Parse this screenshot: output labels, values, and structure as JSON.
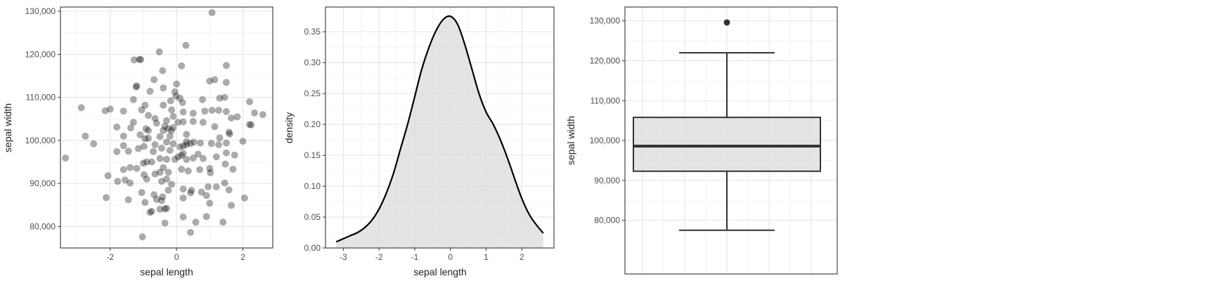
{
  "chart_data": [
    {
      "type": "scatter",
      "xlabel": "sepal length",
      "ylabel": "sepal width",
      "xlim": [
        -3.5,
        2.9
      ],
      "ylim": [
        75000,
        131000
      ],
      "xticks": [
        -2,
        0,
        2
      ],
      "xtick_labels": [
        "-2",
        "0",
        "2"
      ],
      "yticks": [
        80000,
        90000,
        100000,
        110000,
        120000,
        130000
      ],
      "ytick_labels": [
        "80,000",
        "90,000",
        "100,000",
        "110,000",
        "120,000",
        "130,000"
      ],
      "grid": true,
      "points": [
        [
          1.07,
          129700
        ],
        [
          0.28,
          122100
        ],
        [
          -0.52,
          120600
        ],
        [
          -1.28,
          118700
        ],
        [
          -1.12,
          118800
        ],
        [
          -1.08,
          118800
        ],
        [
          0.15,
          117300
        ],
        [
          1.5,
          117400
        ],
        [
          -0.42,
          116200
        ],
        [
          -0.68,
          114100
        ],
        [
          1.0,
          113800
        ],
        [
          1.15,
          114100
        ],
        [
          -1.2,
          112700
        ],
        [
          -1.22,
          112400
        ],
        [
          -0.4,
          112200
        ],
        [
          0.0,
          113100
        ],
        [
          1.5,
          113500
        ],
        [
          -0.8,
          111400
        ],
        [
          -0.05,
          111300
        ],
        [
          -0.02,
          110300
        ],
        [
          0.1,
          109800
        ],
        [
          0.18,
          108800
        ],
        [
          -0.4,
          108200
        ],
        [
          1.3,
          109800
        ],
        [
          1.45,
          110000
        ],
        [
          0.78,
          109500
        ],
        [
          -0.18,
          109200
        ],
        [
          -1.3,
          109500
        ],
        [
          2.2,
          109000
        ],
        [
          -0.95,
          108200
        ],
        [
          -1.6,
          106800
        ],
        [
          -1.05,
          107100
        ],
        [
          -2.0,
          107300
        ],
        [
          -2.87,
          107600
        ],
        [
          -2.15,
          106900
        ],
        [
          0.2,
          106600
        ],
        [
          0.5,
          106300
        ],
        [
          -0.15,
          107100
        ],
        [
          0.85,
          106800
        ],
        [
          1.07,
          107000
        ],
        [
          1.27,
          107000
        ],
        [
          1.5,
          106700
        ],
        [
          1.83,
          105500
        ],
        [
          1.65,
          105200
        ],
        [
          -0.1,
          105600
        ],
        [
          2.35,
          106400
        ],
        [
          2.6,
          106000
        ],
        [
          -0.85,
          105800
        ],
        [
          -0.65,
          105100
        ],
        [
          -0.3,
          104600
        ],
        [
          0.04,
          104200
        ],
        [
          0.2,
          104300
        ],
        [
          0.5,
          104400
        ],
        [
          2.2,
          103700
        ],
        [
          2.25,
          103600
        ],
        [
          0.8,
          104200
        ],
        [
          -0.6,
          104000
        ],
        [
          -1.3,
          104200
        ],
        [
          -1.8,
          103100
        ],
        [
          -1.38,
          102900
        ],
        [
          -0.92,
          102700
        ],
        [
          -0.85,
          102300
        ],
        [
          -0.4,
          102300
        ],
        [
          -0.35,
          103300
        ],
        [
          -0.25,
          102700
        ],
        [
          -0.15,
          102300
        ],
        [
          -0.1,
          103000
        ],
        [
          1.15,
          103200
        ],
        [
          1.58,
          101900
        ],
        [
          1.6,
          101500
        ],
        [
          0.3,
          101400
        ],
        [
          -0.2,
          101000
        ],
        [
          -0.5,
          100900
        ],
        [
          -0.85,
          100500
        ],
        [
          -0.95,
          100400
        ],
        [
          -1.1,
          101300
        ],
        [
          -1.6,
          101000
        ],
        [
          -2.75,
          101000
        ],
        [
          -2.5,
          99200
        ],
        [
          1.3,
          100600
        ],
        [
          2.0,
          99800
        ],
        [
          1.5,
          99400
        ],
        [
          1.05,
          99300
        ],
        [
          1.27,
          99000
        ],
        [
          0.72,
          99400
        ],
        [
          0.52,
          99600
        ],
        [
          0.42,
          99300
        ],
        [
          0.3,
          99700
        ],
        [
          0.2,
          98700
        ],
        [
          0.1,
          98500
        ],
        [
          0.3,
          99000
        ],
        [
          -0.1,
          99200
        ],
        [
          -0.3,
          99600
        ],
        [
          -0.65,
          99000
        ],
        [
          -0.98,
          98600
        ],
        [
          -1.15,
          98100
        ],
        [
          -1.6,
          98800
        ],
        [
          -1.8,
          97400
        ],
        [
          -1.45,
          97500
        ],
        [
          -0.7,
          97400
        ],
        [
          -0.45,
          98200
        ],
        [
          -0.2,
          97700
        ],
        [
          0.05,
          96200
        ],
        [
          0.15,
          96500
        ],
        [
          0.2,
          97000
        ],
        [
          -0.05,
          95600
        ],
        [
          0.3,
          95600
        ],
        [
          0.5,
          95900
        ],
        [
          0.65,
          96800
        ],
        [
          1.5,
          97100
        ],
        [
          1.75,
          96600
        ],
        [
          1.2,
          96200
        ],
        [
          0.8,
          95800
        ],
        [
          -0.3,
          95600
        ],
        [
          -0.5,
          95800
        ],
        [
          -0.75,
          95000
        ],
        [
          -0.9,
          95000
        ],
        [
          -1.0,
          94700
        ],
        [
          -1.4,
          93700
        ],
        [
          -1.6,
          93200
        ],
        [
          -1.2,
          93500
        ],
        [
          -3.35,
          95900
        ],
        [
          -0.4,
          93700
        ],
        [
          0.15,
          93300
        ],
        [
          0.35,
          92900
        ],
        [
          0.7,
          93200
        ],
        [
          1.0,
          93500
        ],
        [
          1.47,
          94500
        ],
        [
          1.7,
          93300
        ],
        [
          1.02,
          92500
        ],
        [
          -0.25,
          92600
        ],
        [
          -0.5,
          92600
        ],
        [
          -0.65,
          92200
        ],
        [
          -0.98,
          92000
        ],
        [
          -1.4,
          90100
        ],
        [
          -1.55,
          90800
        ],
        [
          -1.78,
          90500
        ],
        [
          -2.07,
          91800
        ],
        [
          -0.9,
          91000
        ],
        [
          -0.3,
          91000
        ],
        [
          -0.45,
          90500
        ],
        [
          -0.15,
          89800
        ],
        [
          0.2,
          88700
        ],
        [
          0.45,
          88400
        ],
        [
          0.95,
          89200
        ],
        [
          1.2,
          89200
        ],
        [
          1.45,
          90100
        ],
        [
          1.58,
          88500
        ],
        [
          0.75,
          88000
        ],
        [
          0.42,
          87800
        ],
        [
          -1.05,
          87900
        ],
        [
          -0.68,
          87400
        ],
        [
          -0.42,
          86900
        ],
        [
          -0.25,
          88400
        ],
        [
          -0.6,
          86300
        ],
        [
          -1.45,
          86200
        ],
        [
          -2.12,
          86700
        ],
        [
          -0.45,
          86000
        ],
        [
          0.2,
          86600
        ],
        [
          0.9,
          87200
        ],
        [
          1.0,
          85400
        ],
        [
          1.65,
          84900
        ],
        [
          2.05,
          86600
        ],
        [
          -0.3,
          84200
        ],
        [
          -0.35,
          84100
        ],
        [
          -0.75,
          83500
        ],
        [
          -0.8,
          83300
        ],
        [
          -0.95,
          85600
        ],
        [
          -0.5,
          84000
        ],
        [
          0.2,
          82200
        ],
        [
          0.9,
          82300
        ],
        [
          1.4,
          81000
        ],
        [
          -0.35,
          80800
        ],
        [
          0.58,
          81000
        ],
        [
          0.42,
          78600
        ],
        [
          -1.03,
          77600
        ]
      ]
    },
    {
      "type": "area",
      "xlabel": "sepal length",
      "ylabel": "density",
      "xlim": [
        -3.5,
        2.9
      ],
      "ylim": [
        0,
        0.39
      ],
      "xticks": [
        -3,
        -2,
        -1,
        0,
        1,
        2
      ],
      "xtick_labels": [
        "-3",
        "-2",
        "-1",
        "0",
        "1",
        "2"
      ],
      "yticks": [
        0,
        0.05,
        0.1,
        0.15,
        0.2,
        0.25,
        0.3,
        0.35
      ],
      "ytick_labels": [
        "0.00",
        "0.05",
        "0.10",
        "0.15",
        "0.20",
        "0.25",
        "0.30",
        "0.35"
      ],
      "grid": true,
      "x": [
        -3.2,
        -3.0,
        -2.8,
        -2.6,
        -2.4,
        -2.2,
        -2.0,
        -1.8,
        -1.6,
        -1.4,
        -1.2,
        -1.0,
        -0.8,
        -0.6,
        -0.4,
        -0.2,
        0.0,
        0.2,
        0.4,
        0.6,
        0.8,
        1.0,
        1.2,
        1.4,
        1.6,
        1.8,
        2.0,
        2.2,
        2.4,
        2.6
      ],
      "y": [
        0.01,
        0.015,
        0.02,
        0.025,
        0.033,
        0.045,
        0.063,
        0.088,
        0.12,
        0.16,
        0.2,
        0.245,
        0.29,
        0.325,
        0.352,
        0.37,
        0.375,
        0.362,
        0.33,
        0.29,
        0.25,
        0.22,
        0.2,
        0.175,
        0.145,
        0.112,
        0.08,
        0.055,
        0.038,
        0.024
      ]
    },
    {
      "type": "box",
      "xlabel": "",
      "ylabel": "sepal width",
      "ylim": [
        75000,
        131000
      ],
      "yticks": [
        80000,
        90000,
        100000,
        110000,
        120000,
        130000
      ],
      "ytick_labels": [
        "80,000",
        "90,000",
        "100,000",
        "110,000",
        "120,000",
        "130,000"
      ],
      "grid": true,
      "whisker_low": 77500,
      "q1": 92300,
      "median": 98600,
      "q3": 105800,
      "whisker_high": 122000,
      "outliers": [
        129600
      ]
    }
  ]
}
